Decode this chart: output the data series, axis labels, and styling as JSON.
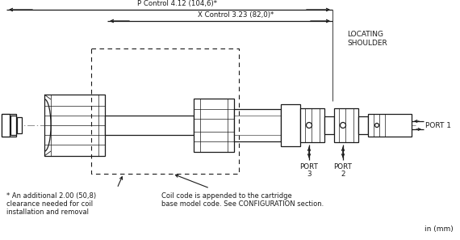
{
  "bg_color": "#ffffff",
  "line_color": "#1a1a1a",
  "dash_color": "#888888",
  "annotation_footnote1": "* An additional 2.00 (50,8)",
  "annotation_footnote2": "clearance needed for coil",
  "annotation_footnote3": "installation and removal",
  "annotation_coil1": "Coil code is appended to the cartridge",
  "annotation_coil2": "base model code. See CONFIGURATION section.",
  "label_p_control": "P Control 4.12 (104,6)",
  "label_x_control": "X Control 3.23 (82,0)",
  "label_locating": "LOCATING\nSHOULDER",
  "label_port1": "PORT 1",
  "label_port2": "PORT\n2",
  "label_port3": "PORT\n3",
  "label_units": "in (mm)",
  "asterisk": "*"
}
